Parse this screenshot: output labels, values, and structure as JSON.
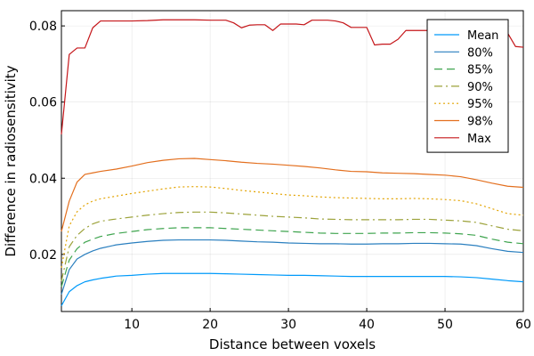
{
  "chart_data": {
    "type": "line",
    "xlabel": "Distance between voxels",
    "ylabel": "Difference in radiosensitivity",
    "xlim": [
      1,
      60
    ],
    "ylim": [
      0.005,
      0.084
    ],
    "x_ticks": [
      10,
      20,
      30,
      40,
      50,
      60
    ],
    "y_ticks": [
      0.02,
      0.04,
      0.06,
      0.08
    ],
    "x_tick_labels": [
      "10",
      "20",
      "30",
      "40",
      "50",
      "60"
    ],
    "y_tick_labels": [
      "0.02",
      "0.04",
      "0.06",
      "0.08"
    ],
    "grid": true,
    "legend_position": "top-right",
    "series": [
      {
        "name": "Mean",
        "color": "#009AFA",
        "dash": "solid",
        "x": [
          1,
          2,
          3,
          4,
          5,
          6,
          8,
          10,
          12,
          14,
          16,
          18,
          20,
          22,
          24,
          26,
          28,
          30,
          32,
          34,
          36,
          38,
          40,
          42,
          44,
          46,
          48,
          50,
          52,
          54,
          56,
          58,
          60
        ],
        "values": [
          0.0065,
          0.0102,
          0.0118,
          0.0128,
          0.0133,
          0.0137,
          0.0143,
          0.0145,
          0.0148,
          0.015,
          0.015,
          0.015,
          0.015,
          0.0149,
          0.0148,
          0.0147,
          0.0146,
          0.0145,
          0.0145,
          0.0144,
          0.0143,
          0.0142,
          0.0142,
          0.0142,
          0.0142,
          0.0142,
          0.0142,
          0.0142,
          0.0141,
          0.0139,
          0.0135,
          0.0131,
          0.0128
        ]
      },
      {
        "name": "80%",
        "color": "#2A7FBF",
        "dash": "solid",
        "x": [
          1,
          2,
          3,
          4,
          5,
          6,
          8,
          10,
          12,
          14,
          16,
          18,
          20,
          22,
          24,
          26,
          28,
          30,
          32,
          34,
          36,
          38,
          40,
          42,
          44,
          46,
          48,
          50,
          52,
          54,
          56,
          58,
          60
        ],
        "values": [
          0.0095,
          0.016,
          0.0188,
          0.02,
          0.0209,
          0.0216,
          0.0225,
          0.023,
          0.0234,
          0.0237,
          0.0238,
          0.0238,
          0.0238,
          0.0237,
          0.0235,
          0.0233,
          0.0232,
          0.023,
          0.0229,
          0.0228,
          0.0228,
          0.0227,
          0.0227,
          0.0228,
          0.0228,
          0.0229,
          0.0229,
          0.0228,
          0.0227,
          0.0223,
          0.0215,
          0.0208,
          0.0205
        ]
      },
      {
        "name": "85%",
        "color": "#3EA44E",
        "dash": "dash",
        "x": [
          1,
          2,
          3,
          4,
          5,
          6,
          8,
          10,
          12,
          14,
          16,
          18,
          20,
          22,
          24,
          26,
          28,
          30,
          32,
          34,
          36,
          38,
          40,
          42,
          44,
          46,
          48,
          50,
          52,
          54,
          56,
          58,
          60
        ],
        "values": [
          0.0115,
          0.0185,
          0.0215,
          0.0232,
          0.024,
          0.0247,
          0.0255,
          0.026,
          0.0265,
          0.0268,
          0.027,
          0.027,
          0.027,
          0.0268,
          0.0266,
          0.0264,
          0.0262,
          0.026,
          0.0258,
          0.0256,
          0.0255,
          0.0255,
          0.0255,
          0.0256,
          0.0256,
          0.0257,
          0.0257,
          0.0256,
          0.0254,
          0.025,
          0.024,
          0.0232,
          0.0228
        ]
      },
      {
        "name": "90%",
        "color": "#9CA23A",
        "dash": "dashdot",
        "x": [
          1,
          2,
          3,
          4,
          5,
          6,
          8,
          10,
          12,
          14,
          16,
          18,
          20,
          22,
          24,
          26,
          28,
          30,
          32,
          34,
          36,
          38,
          40,
          42,
          44,
          46,
          48,
          50,
          52,
          54,
          56,
          58,
          60
        ],
        "values": [
          0.013,
          0.022,
          0.025,
          0.0268,
          0.028,
          0.0287,
          0.0293,
          0.0298,
          0.0303,
          0.0307,
          0.031,
          0.0311,
          0.0311,
          0.0309,
          0.0306,
          0.0303,
          0.03,
          0.0298,
          0.0296,
          0.0293,
          0.0292,
          0.0291,
          0.0291,
          0.0291,
          0.0291,
          0.0292,
          0.0292,
          0.029,
          0.0288,
          0.0284,
          0.0275,
          0.0266,
          0.0262
        ]
      },
      {
        "name": "95%",
        "color": "#E3A300",
        "dash": "dot",
        "x": [
          1,
          2,
          3,
          4,
          5,
          6,
          8,
          10,
          12,
          14,
          16,
          18,
          20,
          22,
          24,
          26,
          28,
          30,
          32,
          34,
          36,
          38,
          40,
          42,
          44,
          46,
          48,
          50,
          52,
          54,
          56,
          58,
          60
        ],
        "values": [
          0.0165,
          0.0275,
          0.0312,
          0.033,
          0.034,
          0.0346,
          0.0353,
          0.036,
          0.0366,
          0.0372,
          0.0377,
          0.0378,
          0.0377,
          0.0373,
          0.0368,
          0.0364,
          0.036,
          0.0356,
          0.0354,
          0.0351,
          0.0349,
          0.0348,
          0.0347,
          0.0346,
          0.0346,
          0.0347,
          0.0346,
          0.0344,
          0.0341,
          0.0333,
          0.032,
          0.0307,
          0.0303
        ]
      },
      {
        "name": "98%",
        "color": "#E36F1E",
        "dash": "solid",
        "x": [
          1,
          2,
          3,
          4,
          5,
          6,
          8,
          10,
          12,
          14,
          16,
          18,
          20,
          22,
          24,
          26,
          28,
          30,
          32,
          34,
          36,
          38,
          40,
          42,
          44,
          46,
          48,
          50,
          52,
          54,
          56,
          58,
          60
        ],
        "values": [
          0.026,
          0.034,
          0.039,
          0.041,
          0.0414,
          0.0418,
          0.0424,
          0.0432,
          0.0441,
          0.0447,
          0.0451,
          0.0452,
          0.0449,
          0.0446,
          0.0442,
          0.0439,
          0.0437,
          0.0434,
          0.0431,
          0.0427,
          0.0422,
          0.0418,
          0.0417,
          0.0414,
          0.0413,
          0.0412,
          0.041,
          0.0408,
          0.0404,
          0.0396,
          0.0387,
          0.0379,
          0.0376
        ]
      },
      {
        "name": "Max",
        "color": "#C5161A",
        "dash": "solid",
        "x": [
          1,
          2,
          3,
          4,
          5,
          6,
          7,
          8,
          10,
          12,
          14,
          16,
          18,
          20,
          22,
          23,
          24,
          25,
          26,
          27,
          28,
          29,
          30,
          31,
          32,
          33,
          34,
          35,
          36,
          37,
          38,
          39,
          40,
          41,
          42,
          43,
          44,
          45,
          46,
          47,
          48,
          50,
          52,
          54,
          56,
          58,
          59,
          60
        ],
        "values": [
          0.0515,
          0.0725,
          0.0742,
          0.0742,
          0.0795,
          0.0813,
          0.0813,
          0.0813,
          0.0813,
          0.0814,
          0.0816,
          0.0816,
          0.0816,
          0.0815,
          0.0815,
          0.0808,
          0.0795,
          0.0802,
          0.0803,
          0.0803,
          0.0788,
          0.0805,
          0.0805,
          0.0805,
          0.0803,
          0.0815,
          0.0815,
          0.0815,
          0.0813,
          0.0808,
          0.0796,
          0.0796,
          0.0796,
          0.075,
          0.0752,
          0.0752,
          0.0765,
          0.0788,
          0.0788,
          0.0788,
          0.0788,
          0.0788,
          0.0788,
          0.0788,
          0.0788,
          0.0781,
          0.0746,
          0.0744
        ]
      }
    ]
  }
}
